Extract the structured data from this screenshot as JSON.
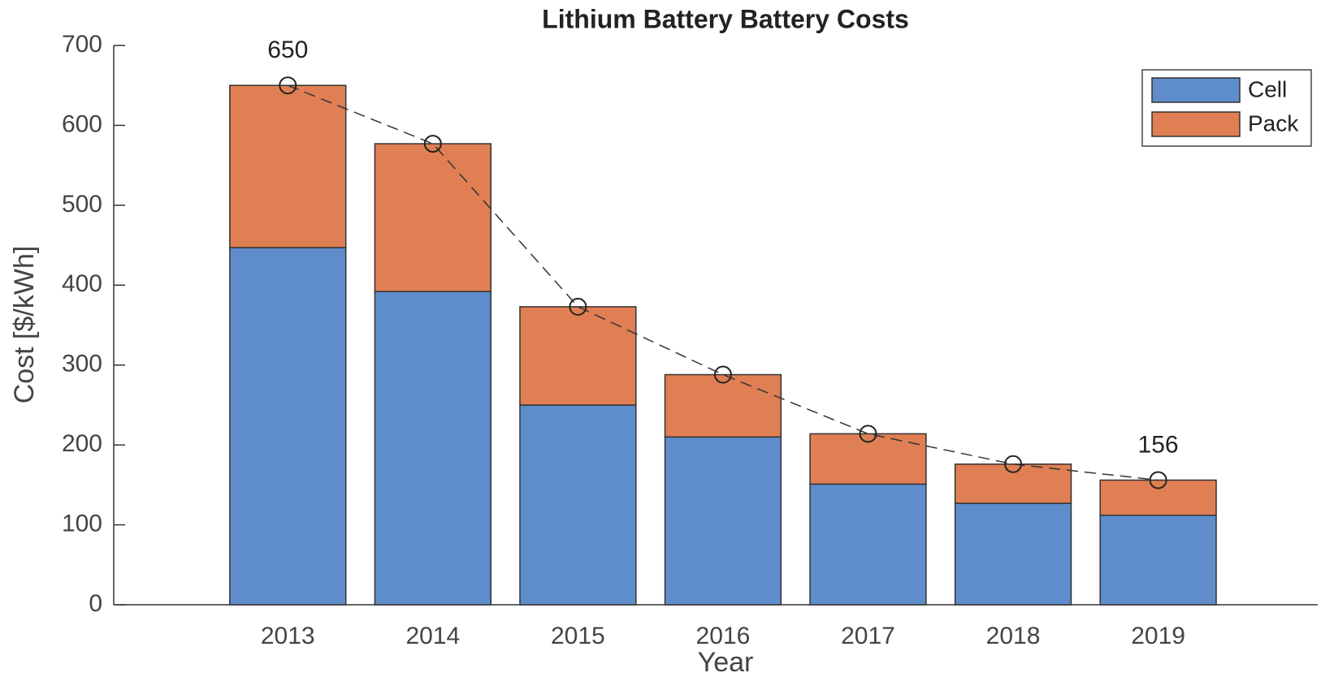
{
  "chart_data": {
    "type": "bar",
    "stacked": true,
    "title": "Lithium Battery Battery Costs",
    "x_label": "Year",
    "y_label": "Cost [$/kWh]",
    "x": [
      2013,
      2014,
      2015,
      2016,
      2017,
      2018,
      2019
    ],
    "xlim": [
      2011.8,
      2020.1
    ],
    "xticks": [
      2013,
      2014,
      2015,
      2016,
      2017,
      2018,
      2019
    ],
    "ylim": [
      0,
      700
    ],
    "yticks": [
      0,
      100,
      200,
      300,
      400,
      500,
      600,
      700
    ],
    "series": [
      {
        "name": "Cell",
        "color": "#5f8dcb",
        "values": [
          447,
          392,
          250,
          210,
          151,
          127,
          112
        ]
      },
      {
        "name": "Pack",
        "color": "#e07f53",
        "values": [
          203,
          185,
          123,
          78,
          63,
          49,
          44
        ]
      }
    ],
    "total": {
      "color": "#333333",
      "values": [
        650,
        577,
        373,
        288,
        214,
        176,
        156
      ],
      "value_labels": [
        "650",
        null,
        null,
        null,
        null,
        null,
        "156"
      ]
    },
    "legend": "upper right",
    "grid": false
  }
}
